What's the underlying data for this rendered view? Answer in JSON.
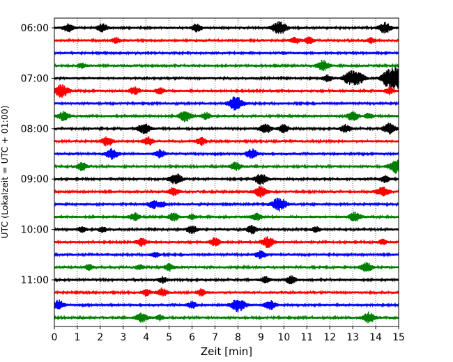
{
  "chart_data": {
    "type": "line",
    "title": "",
    "xlabel": "Zeit  [min]",
    "ylabel": "UTC (Lokalzeit = UTC + 01:00)",
    "xlim": [
      0,
      15
    ],
    "x_ticks": [
      "0",
      "1",
      "2",
      "3",
      "4",
      "5",
      "6",
      "7",
      "8",
      "9",
      "10",
      "11",
      "12",
      "13",
      "14",
      "15"
    ],
    "y_ticks": [
      "06:00",
      "07:00",
      "08:00",
      "09:00",
      "10:00",
      "11:00"
    ],
    "grid": "vertical dotted lines at each minute",
    "legend": "none",
    "trace_colors": [
      "#000000",
      "#ff0000",
      "#0000ff",
      "#008000"
    ],
    "traces": [
      {
        "start": "06:00",
        "color": "#000000",
        "events": [
          [
            0.6,
            0.6
          ],
          [
            2.1,
            0.6
          ],
          [
            6.2,
            0.6
          ],
          [
            9.8,
            1.0
          ],
          [
            14.4,
            0.8
          ]
        ]
      },
      {
        "start": "06:15",
        "color": "#ff0000",
        "events": [
          [
            2.7,
            0.4
          ],
          [
            10.5,
            0.5
          ],
          [
            11.1,
            0.5
          ],
          [
            13.8,
            0.4
          ]
        ]
      },
      {
        "start": "06:30",
        "color": "#0000ff",
        "events": [
          [
            10.0,
            0.2
          ]
        ]
      },
      {
        "start": "06:45",
        "color": "#008000",
        "events": [
          [
            1.2,
            0.4
          ],
          [
            11.7,
            0.8
          ]
        ]
      },
      {
        "start": "07:00",
        "color": "#000000",
        "events": [
          [
            11.9,
            0.5
          ],
          [
            12.9,
            1.0
          ],
          [
            13.3,
            0.7
          ],
          [
            14.5,
            0.8
          ],
          [
            14.95,
            1.6
          ]
        ]
      },
      {
        "start": "07:15",
        "color": "#ff0000",
        "events": [
          [
            0.3,
            1.0
          ],
          [
            3.5,
            0.6
          ],
          [
            4.6,
            0.5
          ],
          [
            14.6,
            0.5
          ]
        ]
      },
      {
        "start": "07:30",
        "color": "#0000ff",
        "events": [
          [
            7.9,
            1.0
          ]
        ]
      },
      {
        "start": "07:45",
        "color": "#008000",
        "events": [
          [
            0.4,
            0.7
          ],
          [
            5.7,
            0.8
          ],
          [
            6.6,
            0.5
          ],
          [
            13.0,
            0.7
          ],
          [
            13.7,
            0.4
          ]
        ]
      },
      {
        "start": "08:00",
        "color": "#000000",
        "events": [
          [
            3.9,
            0.8
          ],
          [
            9.2,
            0.7
          ],
          [
            10.0,
            0.6
          ],
          [
            12.7,
            0.6
          ],
          [
            14.6,
            0.8
          ]
        ]
      },
      {
        "start": "08:15",
        "color": "#ff0000",
        "events": [
          [
            2.3,
            0.7
          ],
          [
            4.1,
            0.6
          ],
          [
            6.4,
            0.6
          ]
        ]
      },
      {
        "start": "08:30",
        "color": "#0000ff",
        "events": [
          [
            2.5,
            0.8
          ],
          [
            4.6,
            0.6
          ],
          [
            8.6,
            0.7
          ]
        ]
      },
      {
        "start": "08:45",
        "color": "#008000",
        "events": [
          [
            1.2,
            0.6
          ],
          [
            7.9,
            0.6
          ],
          [
            14.9,
            1.0
          ]
        ]
      },
      {
        "start": "09:00",
        "color": "#000000",
        "events": [
          [
            5.3,
            0.8
          ],
          [
            9.0,
            0.8
          ],
          [
            14.4,
            0.5
          ]
        ]
      },
      {
        "start": "09:15",
        "color": "#ff0000",
        "events": [
          [
            5.2,
            0.6
          ],
          [
            9.0,
            0.8
          ],
          [
            14.3,
            0.8
          ]
        ]
      },
      {
        "start": "09:30",
        "color": "#0000ff",
        "events": [
          [
            4.3,
            0.6
          ],
          [
            4.7,
            0.4
          ],
          [
            9.8,
            1.0
          ]
        ]
      },
      {
        "start": "09:45",
        "color": "#008000",
        "events": [
          [
            3.5,
            0.6
          ],
          [
            5.2,
            0.6
          ],
          [
            6.0,
            0.4
          ],
          [
            8.8,
            0.6
          ],
          [
            13.1,
            0.7
          ]
        ]
      },
      {
        "start": "10:00",
        "color": "#000000",
        "events": [
          [
            1.2,
            0.4
          ],
          [
            2.1,
            0.4
          ],
          [
            6.0,
            0.6
          ],
          [
            8.6,
            0.6
          ],
          [
            11.4,
            0.4
          ]
        ]
      },
      {
        "start": "10:15",
        "color": "#ff0000",
        "events": [
          [
            3.8,
            0.6
          ],
          [
            7.0,
            0.6
          ],
          [
            9.3,
            0.8
          ],
          [
            14.3,
            0.4
          ]
        ]
      },
      {
        "start": "10:30",
        "color": "#0000ff",
        "events": [
          [
            4.4,
            0.4
          ],
          [
            9.0,
            0.6
          ]
        ]
      },
      {
        "start": "10:45",
        "color": "#008000",
        "events": [
          [
            1.5,
            0.4
          ],
          [
            3.7,
            0.4
          ],
          [
            5.0,
            0.5
          ],
          [
            13.6,
            0.7
          ]
        ]
      },
      {
        "start": "11:00",
        "color": "#000000",
        "events": [
          [
            4.7,
            0.5
          ],
          [
            9.2,
            0.5
          ],
          [
            10.3,
            0.6
          ]
        ]
      },
      {
        "start": "11:15",
        "color": "#ff0000",
        "events": [
          [
            4.0,
            0.5
          ],
          [
            4.7,
            0.6
          ],
          [
            6.4,
            0.5
          ]
        ]
      },
      {
        "start": "11:30",
        "color": "#0000ff",
        "events": [
          [
            0.2,
            0.7
          ],
          [
            6.0,
            0.5
          ],
          [
            8.0,
            1.0
          ],
          [
            9.4,
            0.7
          ]
        ]
      },
      {
        "start": "11:45",
        "color": "#008000",
        "events": [
          [
            3.8,
            0.7
          ],
          [
            4.6,
            0.4
          ],
          [
            13.7,
            0.8
          ]
        ]
      }
    ]
  }
}
